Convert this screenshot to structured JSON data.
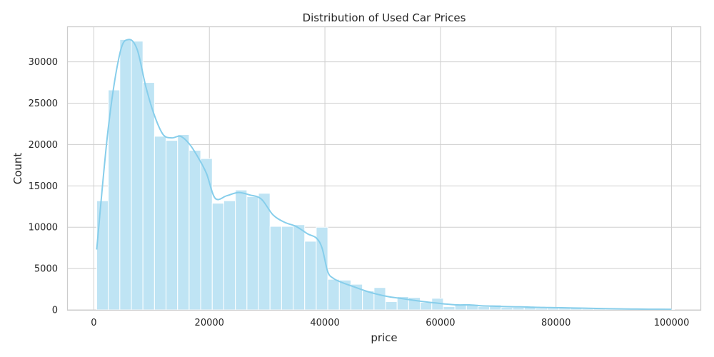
{
  "chart_data": {
    "type": "bar",
    "title": "Distribution of Used Car Prices",
    "xlabel": "price",
    "ylabel": "Count",
    "xlim": [
      -4500,
      105000
    ],
    "ylim": [
      0,
      34200
    ],
    "xticks": [
      0,
      20000,
      40000,
      60000,
      80000,
      100000
    ],
    "yticks": [
      0,
      5000,
      10000,
      15000,
      20000,
      25000,
      30000
    ],
    "grid": true,
    "colors": {
      "bar_fill": "#bfe4f4",
      "bar_stroke": "#ffffff",
      "kde_line": "#87ceeb",
      "grid": "#cfcfcf",
      "frame": "#cccccc"
    },
    "bin_width": 2000,
    "bins_start": 500,
    "values": [
      13200,
      26600,
      32700,
      32500,
      27500,
      21000,
      20500,
      21200,
      19300,
      18300,
      12900,
      13200,
      14500,
      13700,
      14100,
      10100,
      10100,
      10300,
      8300,
      10000,
      3700,
      3600,
      3100,
      2300,
      2700,
      1000,
      1600,
      1500,
      900,
      1400,
      400,
      700,
      600,
      400,
      600,
      300,
      300,
      400,
      200,
      200,
      200,
      300,
      150,
      200,
      100,
      100,
      100,
      80,
      60,
      80
    ],
    "kde": {
      "x": [
        500,
        2500,
        4500,
        6000,
        7500,
        9000,
        10500,
        12000,
        13500,
        15000,
        16500,
        18000,
        19500,
        21000,
        23000,
        25000,
        27000,
        29000,
        31000,
        33000,
        35000,
        37000,
        38500,
        39500,
        40500,
        41500,
        43000,
        45000,
        47000,
        49000,
        51000,
        53000,
        55000,
        57000,
        59000,
        61000,
        63000,
        65000,
        67000,
        69000,
        71000,
        73000,
        75000,
        77000,
        79000,
        81000,
        83000,
        85000,
        87000,
        90000,
        93000,
        96000,
        100000
      ],
      "y": [
        7300,
        22000,
        31000,
        32700,
        31500,
        27000,
        23500,
        21200,
        20800,
        21000,
        20100,
        18500,
        16500,
        13500,
        13800,
        14200,
        13900,
        13400,
        11500,
        10600,
        10100,
        9200,
        8700,
        7500,
        4600,
        3800,
        3300,
        2800,
        2300,
        1900,
        1600,
        1400,
        1200,
        1000,
        850,
        700,
        600,
        600,
        500,
        450,
        400,
        370,
        350,
        300,
        280,
        260,
        230,
        200,
        170,
        130,
        100,
        80,
        60
      ]
    }
  }
}
